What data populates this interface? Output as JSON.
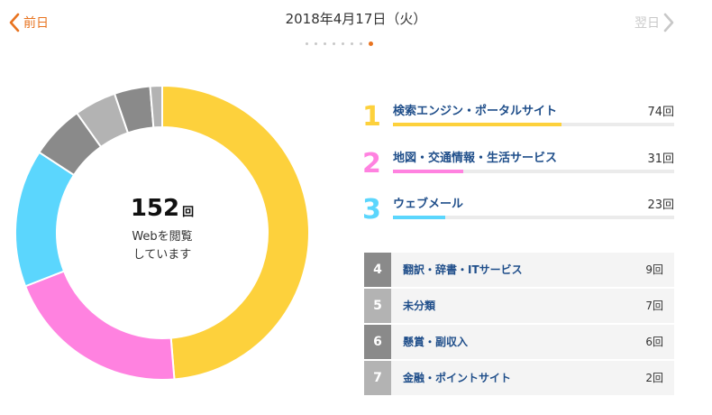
{
  "header": {
    "prev_label": "前日",
    "next_label": "翌日",
    "date": "2018年4月17日（火）",
    "page_count": 8,
    "active_page": 8
  },
  "summary": {
    "total": "152",
    "unit": "回",
    "line1": "Webを閲覧",
    "line2": "しています"
  },
  "colors": {
    "accent": "#e8731f",
    "rank1": "#fdd13c",
    "rank2": "#ff82e0",
    "rank3": "#5bd6fd",
    "gray_dark": "#8a8a8a",
    "gray_light": "#b3b3b3"
  },
  "ranking": [
    {
      "rank": "1",
      "name": "検索エンジン・ポータルサイト",
      "count": "74回",
      "value": 74,
      "color": "#fdd13c"
    },
    {
      "rank": "2",
      "name": "地図・交通情報・生活サービス",
      "count": "31回",
      "value": 31,
      "color": "#ff82e0"
    },
    {
      "rank": "3",
      "name": "ウェブメール",
      "count": "23回",
      "value": 23,
      "color": "#5bd6fd"
    },
    {
      "rank": "4",
      "name": "翻訳・辞書・ITサービス",
      "count": "9回",
      "value": 9,
      "color": "#8a8a8a"
    },
    {
      "rank": "5",
      "name": "未分類",
      "count": "7回",
      "value": 7,
      "color": "#b3b3b3"
    },
    {
      "rank": "6",
      "name": "懸賞・副収入",
      "count": "6回",
      "value": 6,
      "color": "#8a8a8a"
    },
    {
      "rank": "7",
      "name": "金融・ポイントサイト",
      "count": "2回",
      "value": 2,
      "color": "#b3b3b3"
    }
  ],
  "chart_data": {
    "type": "pie",
    "categories": [
      "検索エンジン・ポータルサイト",
      "地図・交通情報・生活サービス",
      "ウェブメール",
      "翻訳・辞書・ITサービス",
      "未分類",
      "懸賞・副収入",
      "金融・ポイントサイト"
    ],
    "values": [
      74,
      31,
      23,
      9,
      7,
      6,
      2
    ],
    "total": 152,
    "colors": [
      "#fdd13c",
      "#ff82e0",
      "#5bd6fd",
      "#8a8a8a",
      "#b3b3b3",
      "#8a8a8a",
      "#b3b3b3"
    ]
  }
}
